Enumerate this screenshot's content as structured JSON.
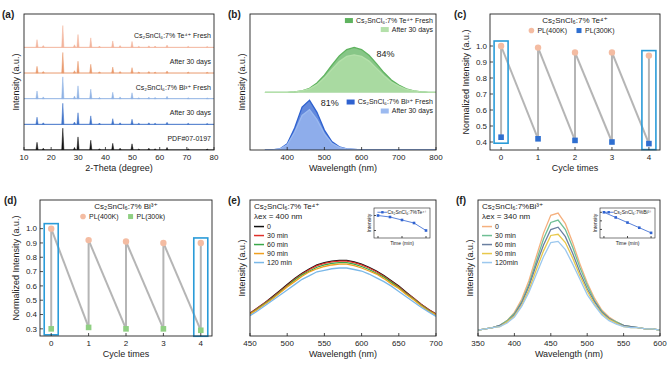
{
  "chart_data": [
    {
      "type": "stem",
      "panel": "(a)",
      "xlabel": "2-Theta (degree)",
      "ylabel": "Intensity (a.u.)",
      "xlim": [
        10,
        80
      ],
      "xticks": [
        10,
        20,
        30,
        40,
        50,
        60,
        70,
        80
      ],
      "ylim": [
        0,
        5.3
      ],
      "tick_labels": "x",
      "series": [
        {
          "name": "Cs₂SnCl₆:7% Te⁴⁺ Fresh",
          "color": "#f3b49c",
          "baseline": 4,
          "x": [
            14.8,
            17.1,
            24.3,
            28.6,
            29.9,
            34.6,
            37.8,
            42.7,
            45.4,
            49.8,
            52.3,
            56.0,
            58.3,
            62.7,
            70.5,
            77.5
          ],
          "values": [
            4.3,
            4.07,
            4.85,
            4.1,
            4.5,
            4.37,
            4.05,
            4.25,
            4.07,
            4.23,
            4.04,
            4.06,
            4.05,
            4.09,
            4.04,
            4.03
          ]
        },
        {
          "name": "After 30 days",
          "color": "#e99a6e",
          "baseline": 3,
          "x": [
            14.8,
            17.1,
            24.3,
            28.6,
            29.9,
            34.6,
            37.8,
            42.7,
            45.4,
            49.8,
            52.3,
            56.0,
            58.3,
            62.7,
            70.5,
            77.5
          ],
          "values": [
            3.26,
            3.06,
            3.8,
            3.09,
            3.46,
            3.34,
            3.05,
            3.23,
            3.06,
            3.21,
            3.04,
            3.06,
            3.04,
            3.08,
            3.04,
            3.03
          ]
        },
        {
          "name": "Cs₂SnCl₆:7% Bi³⁺ Fresh",
          "color": "#8fb2e4",
          "baseline": 2,
          "x": [
            14.8,
            17.1,
            24.3,
            28.6,
            29.9,
            34.6,
            37.8,
            42.7,
            45.4,
            49.8,
            52.3,
            56.0,
            58.3,
            62.7,
            70.5,
            77.5
          ],
          "values": [
            2.3,
            2.07,
            2.85,
            2.1,
            2.5,
            2.37,
            2.05,
            2.25,
            2.07,
            2.23,
            2.04,
            2.06,
            2.05,
            2.09,
            2.04,
            2.03
          ]
        },
        {
          "name": "After 30 days",
          "color": "#3f72c8",
          "baseline": 1,
          "x": [
            14.8,
            17.1,
            24.3,
            28.6,
            29.9,
            34.6,
            37.8,
            42.7,
            45.4,
            49.8,
            52.3,
            56.0,
            58.3,
            62.7,
            70.5,
            77.5
          ],
          "values": [
            1.28,
            1.06,
            1.82,
            1.09,
            1.45,
            1.33,
            1.05,
            1.22,
            1.06,
            1.2,
            1.04,
            1.06,
            1.04,
            1.08,
            1.04,
            1.03
          ]
        },
        {
          "name": "PDF#07-0197",
          "color": "#111111",
          "baseline": 0,
          "x": [
            14.8,
            17.1,
            24.3,
            28.6,
            29.9,
            34.6,
            37.8,
            42.7,
            45.4,
            49.8,
            52.3,
            56.0,
            58.3,
            62.7,
            70.5,
            77.5
          ],
          "values": [
            0.3,
            0.07,
            0.85,
            0.1,
            0.51,
            0.38,
            0.05,
            0.26,
            0.07,
            0.24,
            0.04,
            0.07,
            0.05,
            0.1,
            0.05,
            0.04
          ]
        }
      ]
    },
    {
      "type": "area",
      "panel": "(b)",
      "xlabel": "Wavelength (nm)",
      "ylabel": "Intensity (a.u.)",
      "xlim": [
        300,
        800
      ],
      "xticks": [
        400,
        500,
        600,
        700,
        800
      ],
      "ylim": [
        0,
        2.6
      ],
      "tick_labels": "x",
      "legend": "right",
      "x": [
        340,
        360,
        380,
        400,
        420,
        440,
        460,
        480,
        500,
        520,
        540,
        560,
        580,
        600,
        620,
        640,
        660,
        680,
        700,
        720,
        740,
        760,
        780,
        800
      ],
      "series": [
        {
          "name": "Cs₂SnCl₆:7% Te⁴⁺ Fresh",
          "color": "#5fb35f",
          "baseline": 1.1,
          "values": [
            1.1,
            1.1,
            1.1,
            1.1,
            1.11,
            1.13,
            1.18,
            1.28,
            1.43,
            1.62,
            1.8,
            1.92,
            1.96,
            1.92,
            1.81,
            1.65,
            1.48,
            1.34,
            1.24,
            1.17,
            1.13,
            1.11,
            1.1,
            1.1
          ]
        },
        {
          "name": "After 30 days",
          "color": "#b4e0aa",
          "baseline": 1.1,
          "values": [
            1.1,
            1.1,
            1.1,
            1.1,
            1.11,
            1.13,
            1.17,
            1.25,
            1.38,
            1.54,
            1.69,
            1.79,
            1.82,
            1.79,
            1.7,
            1.56,
            1.42,
            1.3,
            1.22,
            1.16,
            1.13,
            1.11,
            1.1,
            1.1
          ]
        },
        {
          "name": "Cs₂SnCl₆:7% Bi³⁺ Fresh",
          "color": "#2f62d0",
          "baseline": 0,
          "values": [
            0,
            0,
            0.02,
            0.12,
            0.42,
            0.82,
            0.95,
            0.72,
            0.38,
            0.16,
            0.06,
            0.02,
            0.01,
            0,
            0,
            0,
            0,
            0,
            0,
            0,
            0,
            0,
            0,
            0
          ]
        },
        {
          "name": "After 30 days",
          "color": "#9cbaf0",
          "baseline": 0,
          "values": [
            0,
            0,
            0.02,
            0.1,
            0.34,
            0.66,
            0.77,
            0.58,
            0.31,
            0.13,
            0.05,
            0.02,
            0.01,
            0,
            0,
            0,
            0,
            0,
            0,
            0,
            0,
            0,
            0,
            0
          ]
        }
      ],
      "annotations": [
        {
          "text": "84%",
          "x": 640,
          "y": 1.78
        },
        {
          "text": "81%",
          "x": 490,
          "y": 0.85
        }
      ]
    },
    {
      "type": "scatter",
      "panel": "(c)",
      "xlabel": "Cycle times",
      "ylabel": "Normalized Intensity (a.u.)",
      "xlim": [
        -0.3,
        4.3
      ],
      "xticks": [
        0,
        1,
        2,
        3,
        4
      ],
      "ylim": [
        0.35,
        1.2
      ],
      "yticks": [
        0.4,
        0.5,
        0.6,
        0.7,
        0.8,
        0.9,
        {
          "value": 1.0,
          "label": "1.0"
        }
      ],
      "color": "#b5b5b5",
      "legend": "upper center",
      "annotations": [
        "Cs₂SnCl₆:7% Te⁴⁺"
      ],
      "x": [
        0,
        1,
        2,
        3,
        4
      ],
      "series": [
        {
          "name": "PL(400K)",
          "color": "#f4bca2",
          "marker": "circle",
          "values": [
            1.0,
            0.99,
            0.96,
            0.96,
            0.94
          ]
        },
        {
          "name": "PL(300K)",
          "color": "#2f6fd0",
          "marker": "square",
          "values": [
            0.43,
            0.42,
            0.41,
            0.4,
            0.39
          ]
        }
      ]
    },
    {
      "type": "scatter",
      "panel": "(d)",
      "xlabel": "Cycle times",
      "ylabel": "Normalized Intensity (a.u.)",
      "xlim": [
        -0.3,
        4.3
      ],
      "xticks": [
        0,
        1,
        2,
        3,
        4
      ],
      "ylim": [
        0.25,
        1.2
      ],
      "yticks": [
        0.3,
        0.4,
        0.5,
        0.6,
        0.7,
        0.8,
        0.9,
        {
          "value": 1.0,
          "label": "1.0"
        }
      ],
      "color": "#b5b5b5",
      "legend": "upper center",
      "annotations": [
        "Cs₂SnCl₆:7% Bi³⁺"
      ],
      "x": [
        0,
        1,
        2,
        3,
        4
      ],
      "series": [
        {
          "name": "PL(400K)",
          "color": "#f4bca2",
          "marker": "circle",
          "values": [
            1.0,
            0.92,
            0.91,
            0.9,
            0.9
          ]
        },
        {
          "name": "PL(300k)",
          "color": "#8fcf82",
          "marker": "square",
          "values": [
            0.3,
            0.31,
            0.3,
            0.3,
            0.29
          ]
        }
      ]
    },
    {
      "type": "line",
      "panel": "(e)",
      "xlabel": "Wavelength (nm)",
      "ylabel": "Intensity (a.u.)",
      "xlim": [
        450,
        700
      ],
      "xticks": [
        450,
        500,
        550,
        600,
        650,
        700
      ],
      "ylim": [
        0,
        1.8
      ],
      "tick_labels": "x",
      "legend": "upper left",
      "annotations": [
        "Cs₂SnCl₆:7% Te⁴⁺",
        "λex = 400 nm"
      ],
      "x": [
        450,
        460,
        470,
        480,
        490,
        500,
        510,
        520,
        530,
        540,
        550,
        560,
        570,
        580,
        590,
        600,
        610,
        620,
        630,
        640,
        650,
        660,
        670,
        680,
        690,
        700
      ],
      "series": [
        {
          "name": "0",
          "color": "#111111",
          "values": [
            0.3,
            0.37,
            0.44,
            0.52,
            0.6,
            0.68,
            0.76,
            0.83,
            0.89,
            0.94,
            0.97,
            0.99,
            1.0,
            1.0,
            0.98,
            0.95,
            0.91,
            0.86,
            0.8,
            0.73,
            0.66,
            0.58,
            0.5,
            0.42,
            0.35,
            0.29
          ]
        },
        {
          "name": "30 min",
          "color": "#e0302a",
          "values": [
            0.3,
            0.37,
            0.44,
            0.51,
            0.59,
            0.67,
            0.75,
            0.82,
            0.88,
            0.93,
            0.96,
            0.98,
            0.99,
            0.99,
            0.97,
            0.94,
            0.9,
            0.85,
            0.79,
            0.72,
            0.65,
            0.57,
            0.5,
            0.42,
            0.35,
            0.29
          ]
        },
        {
          "name": "60 min",
          "color": "#3aa84a",
          "values": [
            0.29,
            0.36,
            0.43,
            0.5,
            0.58,
            0.66,
            0.74,
            0.81,
            0.86,
            0.91,
            0.94,
            0.96,
            0.97,
            0.97,
            0.95,
            0.92,
            0.88,
            0.83,
            0.78,
            0.71,
            0.64,
            0.56,
            0.49,
            0.41,
            0.34,
            0.28
          ]
        },
        {
          "name": "90 min",
          "color": "#f0a020",
          "values": [
            0.29,
            0.35,
            0.42,
            0.49,
            0.57,
            0.65,
            0.72,
            0.79,
            0.85,
            0.89,
            0.92,
            0.94,
            0.95,
            0.95,
            0.93,
            0.9,
            0.86,
            0.82,
            0.76,
            0.69,
            0.63,
            0.55,
            0.48,
            0.4,
            0.33,
            0.28
          ]
        },
        {
          "name": "120 min",
          "color": "#7ab8e8",
          "values": [
            0.27,
            0.33,
            0.4,
            0.47,
            0.54,
            0.61,
            0.68,
            0.75,
            0.8,
            0.85,
            0.87,
            0.89,
            0.9,
            0.9,
            0.88,
            0.86,
            0.82,
            0.77,
            0.72,
            0.66,
            0.59,
            0.52,
            0.45,
            0.38,
            0.32,
            0.26
          ]
        }
      ]
    },
    {
      "type": "line",
      "xlabel": "Time (min)",
      "ylabel": "Intensity",
      "xlim": [
        -10,
        130
      ],
      "xticks": [
        0,
        60,
        120
      ],
      "ylim": [
        0.85,
        1.05
      ],
      "yticks": [
        0.9,
        1.0
      ],
      "tick_labels": false,
      "legend": "upper right",
      "x": [
        0,
        30,
        60,
        90,
        120
      ],
      "series": [
        {
          "name": "Cs₂SnCl₆:7%Te⁴⁺",
          "color": "#2f62d0",
          "marker": "square",
          "values": [
            1.0,
            0.99,
            0.97,
            0.95,
            0.9
          ]
        }
      ]
    },
    {
      "type": "line",
      "panel": "(f)",
      "xlabel": "Wavelength (nm)",
      "ylabel": "Intensity (a.u.)",
      "xlim": [
        350,
        600
      ],
      "xticks": [
        350,
        400,
        450,
        500,
        550,
        600
      ],
      "ylim": [
        -0.05,
        1.1
      ],
      "tick_labels": "x",
      "legend": "upper left",
      "annotations": [
        "Cs₂SnCl₆:7%Bi³⁺",
        "λex = 340 nm"
      ],
      "x": [
        350,
        360,
        370,
        380,
        390,
        400,
        410,
        420,
        430,
        440,
        450,
        460,
        470,
        480,
        490,
        500,
        510,
        520,
        530,
        540,
        550,
        560,
        570,
        580,
        590,
        600
      ],
      "series": [
        {
          "name": "0",
          "color": "#f5b07e",
          "values": [
            0,
            0.01,
            0.02,
            0.04,
            0.08,
            0.15,
            0.26,
            0.42,
            0.62,
            0.82,
            0.97,
            0.99,
            0.9,
            0.74,
            0.56,
            0.4,
            0.27,
            0.17,
            0.11,
            0.07,
            0.04,
            0.03,
            0.02,
            0.01,
            0.01,
            0
          ]
        },
        {
          "name": "30 min",
          "color": "#6fbf95",
          "values": [
            0,
            0.01,
            0.02,
            0.04,
            0.08,
            0.14,
            0.24,
            0.39,
            0.58,
            0.77,
            0.91,
            0.93,
            0.85,
            0.7,
            0.53,
            0.38,
            0.25,
            0.16,
            0.1,
            0.07,
            0.04,
            0.03,
            0.02,
            0.01,
            0.01,
            0
          ]
        },
        {
          "name": "60 min",
          "color": "#6a7fa0",
          "values": [
            0,
            0.01,
            0.02,
            0.04,
            0.07,
            0.13,
            0.23,
            0.37,
            0.55,
            0.72,
            0.85,
            0.87,
            0.79,
            0.65,
            0.49,
            0.35,
            0.24,
            0.15,
            0.1,
            0.06,
            0.04,
            0.03,
            0.02,
            0.01,
            0.01,
            0
          ]
        },
        {
          "name": "90 min",
          "color": "#e8c84a",
          "values": [
            0,
            0.01,
            0.02,
            0.03,
            0.07,
            0.12,
            0.21,
            0.34,
            0.51,
            0.67,
            0.8,
            0.81,
            0.74,
            0.61,
            0.46,
            0.33,
            0.22,
            0.14,
            0.09,
            0.06,
            0.03,
            0.02,
            0.02,
            0.01,
            0.01,
            0
          ]
        },
        {
          "name": "120min",
          "color": "#9cc8ee",
          "values": [
            0,
            0.01,
            0.02,
            0.03,
            0.06,
            0.11,
            0.2,
            0.32,
            0.47,
            0.62,
            0.74,
            0.75,
            0.68,
            0.56,
            0.43,
            0.3,
            0.21,
            0.13,
            0.08,
            0.05,
            0.03,
            0.02,
            0.02,
            0.01,
            0.01,
            0
          ]
        }
      ]
    },
    {
      "type": "line",
      "xlabel": "Time (min)",
      "ylabel": "Intensity",
      "xlim": [
        -10,
        130
      ],
      "xticks": [
        0,
        60,
        120
      ],
      "ylim": [
        0.7,
        1.05
      ],
      "yticks": [
        0.8,
        0.9,
        1.0
      ],
      "tick_labels": false,
      "legend": "upper right",
      "x": [
        0,
        30,
        60,
        90,
        120
      ],
      "series": [
        {
          "name": "Cs₂SnCl₆:7%Bi³⁺",
          "color": "#2f62d0",
          "marker": "square",
          "values": [
            1.0,
            0.94,
            0.88,
            0.82,
            0.76
          ]
        }
      ]
    }
  ]
}
